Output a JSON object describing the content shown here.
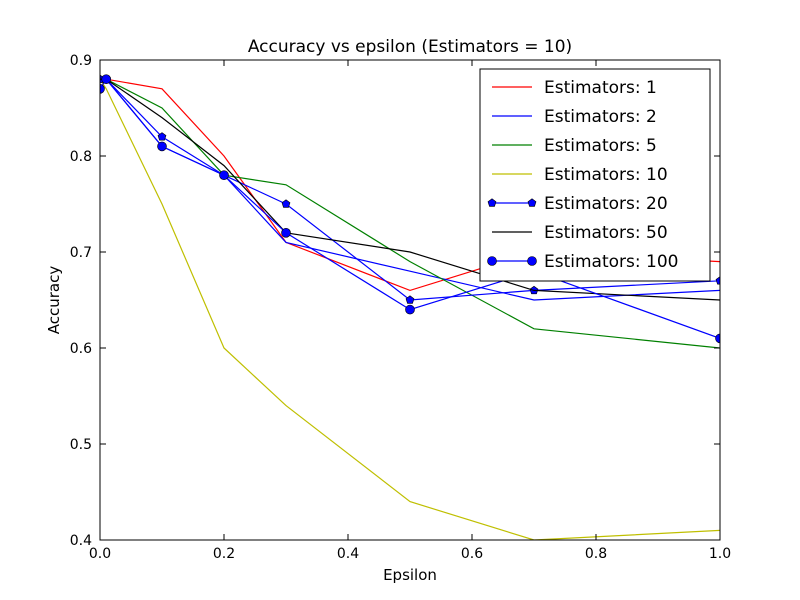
{
  "chart_data": {
    "type": "line",
    "title": "Accuracy vs epsilon (Estimators = 10)",
    "xlabel": "Epsilon",
    "ylabel": "Accuracy",
    "xlim": [
      0.0,
      1.0
    ],
    "ylim": [
      0.4,
      0.9
    ],
    "xticks": [
      "0.0",
      "0.2",
      "0.4",
      "0.6",
      "0.8",
      "1.0"
    ],
    "yticks": [
      "0.4",
      "0.5",
      "0.6",
      "0.7",
      "0.8",
      "0.9"
    ],
    "grid": false,
    "legend_position": "top-right",
    "series": [
      {
        "name": "Estimators: 1",
        "color": "#ff0000",
        "marker": "none",
        "x": [
          0.0,
          0.01,
          0.1,
          0.2,
          0.3,
          0.5,
          0.7,
          1.0
        ],
        "y": [
          0.88,
          0.88,
          0.87,
          0.8,
          0.71,
          0.66,
          0.7,
          0.69
        ]
      },
      {
        "name": "Estimators: 2",
        "color": "#0000ff",
        "marker": "none",
        "x": [
          0.0,
          0.01,
          0.1,
          0.2,
          0.3,
          0.5,
          0.7,
          1.0
        ],
        "y": [
          0.88,
          0.88,
          0.81,
          0.78,
          0.71,
          0.68,
          0.65,
          0.66
        ]
      },
      {
        "name": "Estimators: 5",
        "color": "#008000",
        "marker": "none",
        "x": [
          0.0,
          0.01,
          0.1,
          0.2,
          0.3,
          0.5,
          0.7,
          1.0
        ],
        "y": [
          0.88,
          0.88,
          0.85,
          0.78,
          0.77,
          0.69,
          0.62,
          0.6
        ]
      },
      {
        "name": "Estimators: 10",
        "color": "#bfbf00",
        "marker": "none",
        "x": [
          0.0,
          0.01,
          0.1,
          0.2,
          0.3,
          0.5,
          0.7,
          1.0
        ],
        "y": [
          0.88,
          0.87,
          0.75,
          0.6,
          0.54,
          0.44,
          0.4,
          0.41
        ]
      },
      {
        "name": "Estimators: 20",
        "color": "#0000ff",
        "marker": "pentagon",
        "x": [
          0.0,
          0.01,
          0.1,
          0.2,
          0.3,
          0.5,
          0.7,
          1.0
        ],
        "y": [
          0.88,
          0.88,
          0.82,
          0.78,
          0.75,
          0.65,
          0.66,
          0.67
        ]
      },
      {
        "name": "Estimators: 50",
        "color": "#000000",
        "marker": "none",
        "x": [
          0.0,
          0.01,
          0.1,
          0.2,
          0.3,
          0.5,
          0.7,
          1.0
        ],
        "y": [
          0.88,
          0.88,
          0.84,
          0.79,
          0.72,
          0.7,
          0.66,
          0.65
        ]
      },
      {
        "name": "Estimators: 100",
        "color": "#0000ff",
        "marker": "circle",
        "x": [
          0.0,
          0.01,
          0.1,
          0.2,
          0.3,
          0.5,
          0.7,
          1.0
        ],
        "y": [
          0.87,
          0.88,
          0.81,
          0.78,
          0.72,
          0.64,
          0.68,
          0.61
        ]
      }
    ]
  }
}
